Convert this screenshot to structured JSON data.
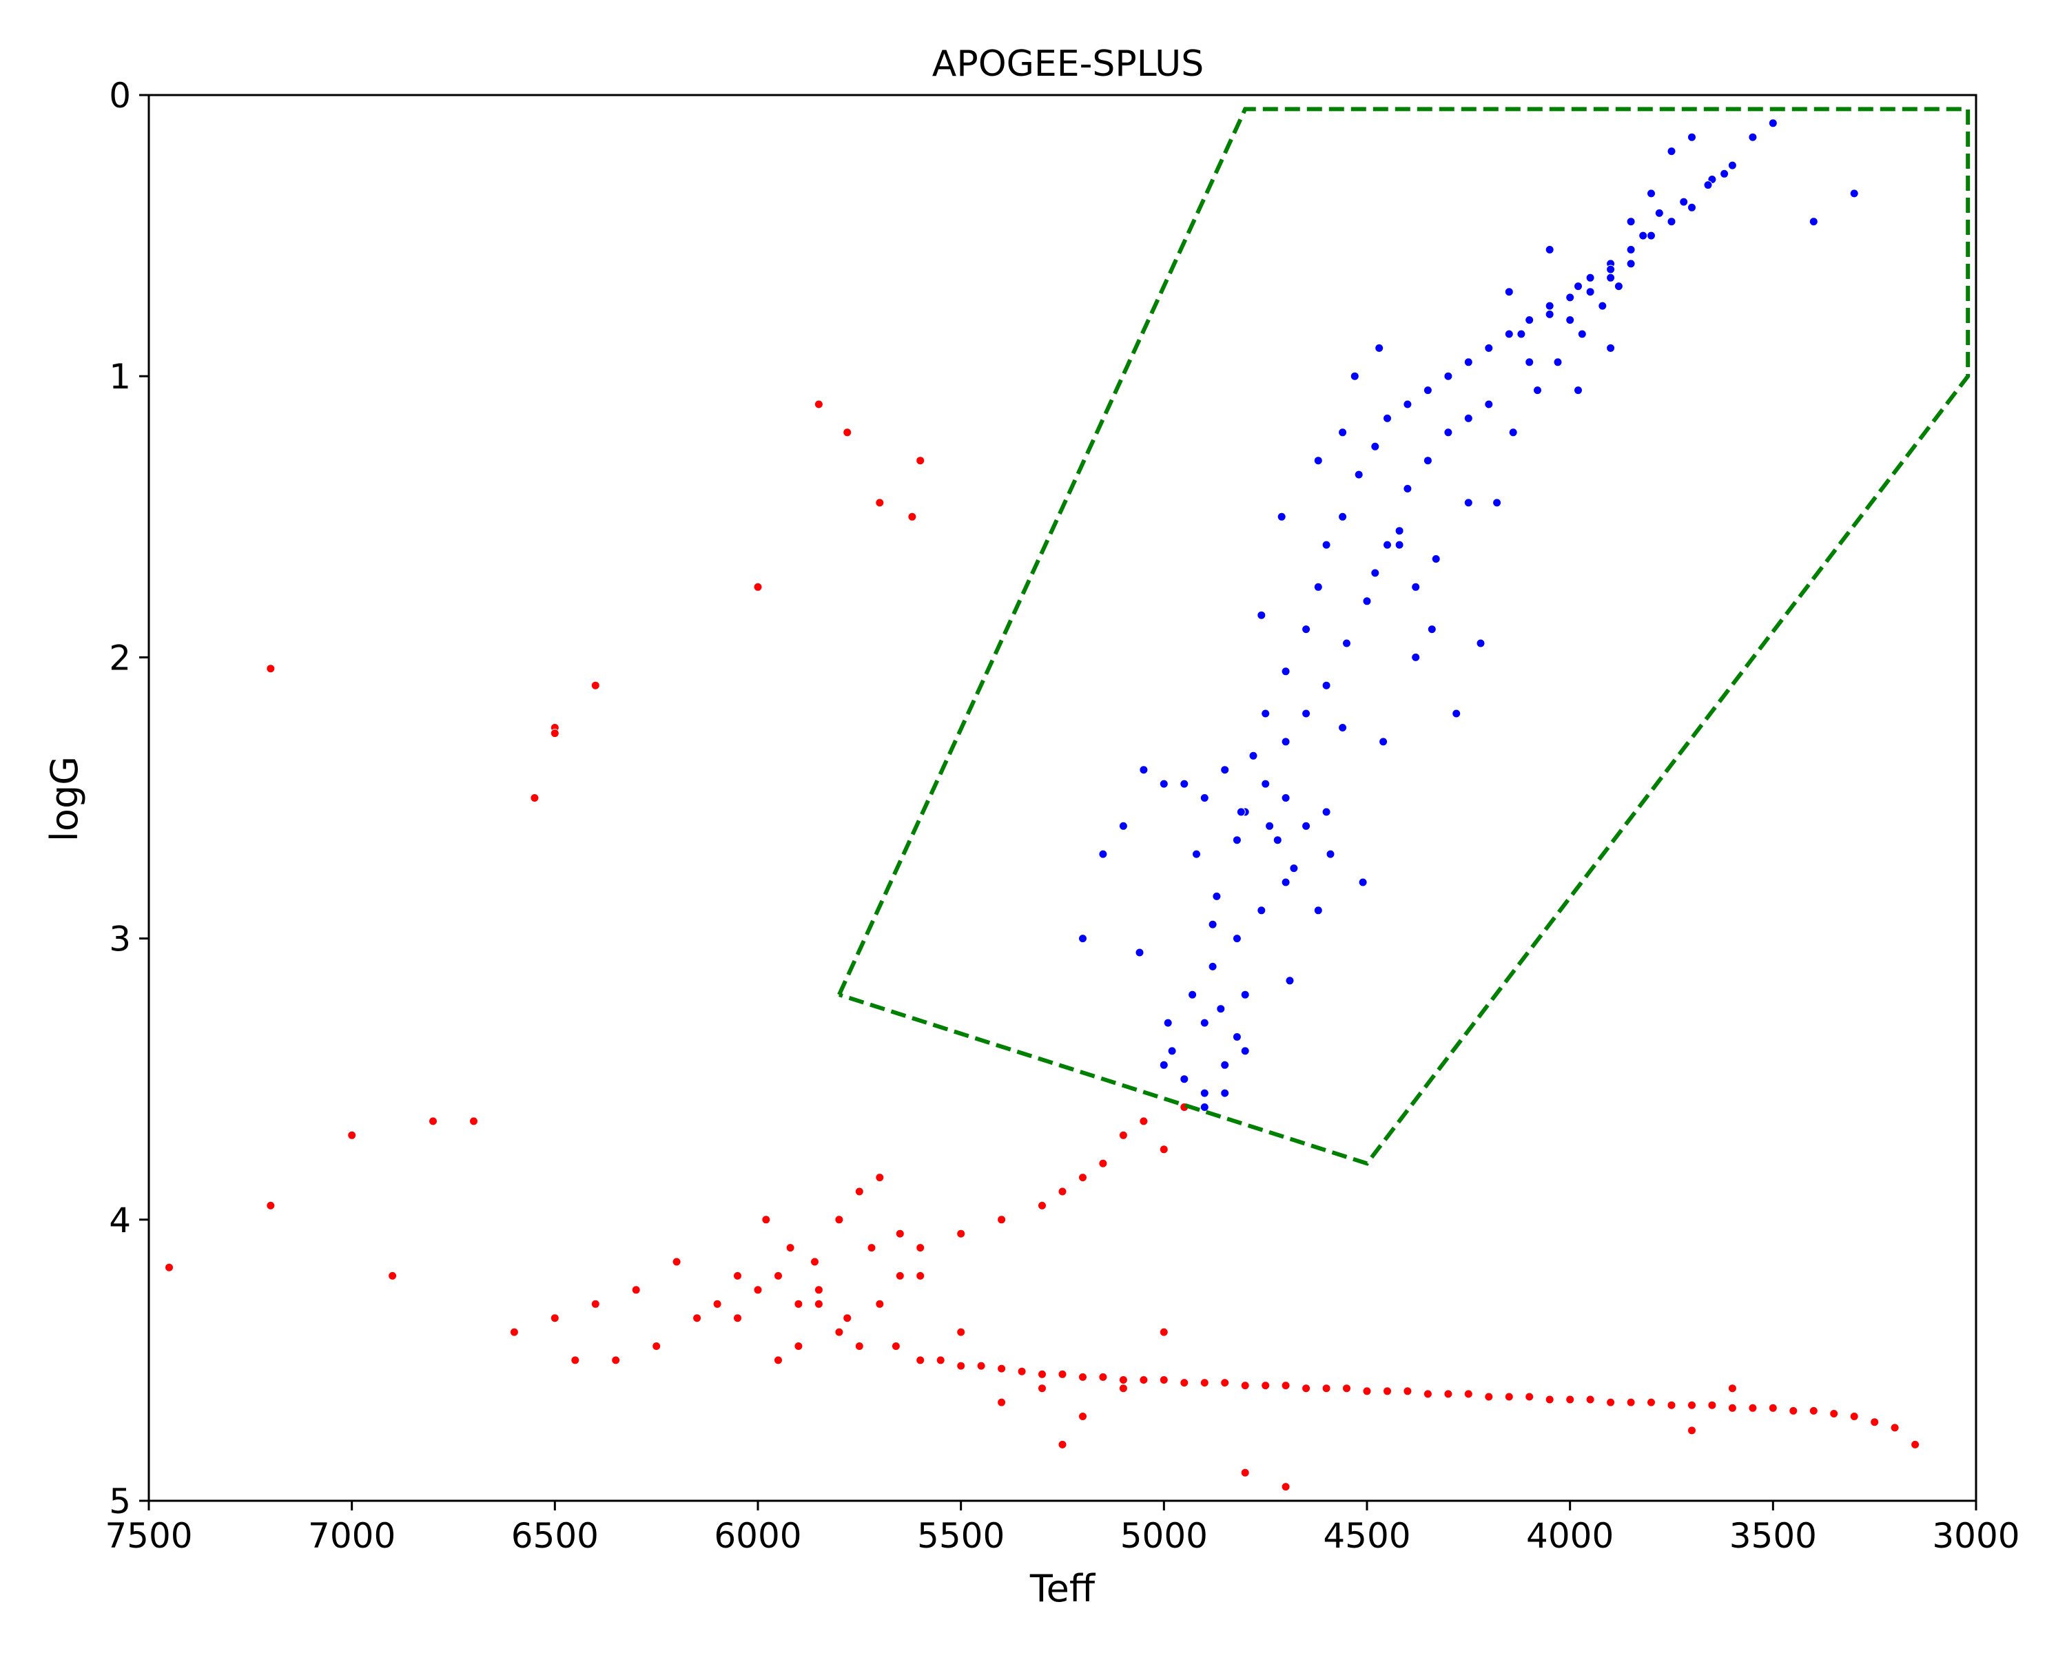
{
  "chart_data": {
    "type": "scatter",
    "title": "APOGEE-SPLUS",
    "xlabel": "Teff",
    "ylabel": "logG",
    "xlim": [
      7500,
      3000
    ],
    "ylim": [
      5,
      0
    ],
    "x_inverted": true,
    "y_inverted": true,
    "xticks": [
      7500,
      7000,
      6500,
      6000,
      5500,
      5000,
      4500,
      4000,
      3500,
      3000
    ],
    "yticks": [
      0,
      1,
      2,
      3,
      4,
      5
    ],
    "grid": false,
    "legend": "none",
    "colors": {
      "selected": "#0000ff",
      "other": "#ff0000",
      "boundary": "#008000"
    },
    "selection_polygon": {
      "style": "dashed",
      "teff": [
        5800,
        4800,
        3020,
        3020,
        4500,
        5800
      ],
      "logg": [
        3.2,
        0.05,
        0.05,
        1.0,
        3.8,
        3.2
      ]
    },
    "series": [
      {
        "group": "selected",
        "color": "#0000ff",
        "teff": [
          4950,
          4900,
          4850,
          4800,
          4750,
          4700,
          4650,
          4600,
          4900,
          4850,
          4800,
          4950,
          4880,
          4820,
          4760,
          4700,
          4900,
          4850,
          4800,
          4920,
          4880,
          4860,
          4820,
          4780,
          4750,
          4700,
          4650,
          4620,
          4600,
          4560,
          4520,
          4480,
          4450,
          4400,
          4350,
          4300,
          4250,
          4200,
          4150,
          4100,
          4050,
          4000,
          3950,
          3900,
          3850,
          3800,
          3750,
          3700,
          3650,
          3600,
          4400,
          4300,
          4200,
          4100,
          4000,
          3950,
          3900,
          3850,
          4150,
          4050,
          3980,
          3900,
          4500,
          4450,
          4350,
          4250,
          4600,
          4550,
          4700,
          4650,
          5000,
          5050,
          5100,
          5150,
          5200,
          4680,
          4720,
          4560,
          4480,
          4420,
          3850,
          3800,
          3750,
          3700,
          3900,
          3980,
          4050,
          4120,
          4250,
          4330,
          4380,
          4460,
          4620,
          4690,
          4820,
          4980,
          5060,
          4760,
          4710,
          4620,
          4560,
          4530,
          4470,
          4420,
          4380,
          4340,
          4280,
          4220,
          4180,
          4140,
          4080,
          4030,
          3970,
          3920,
          3880,
          3820,
          3780,
          3720,
          3660,
          3620,
          3550,
          3500,
          3400,
          3300,
          4900,
          4950,
          5000,
          4870,
          4930,
          4990,
          4810,
          4740,
          4590,
          4510
        ],
        "logg": [
          2.45,
          2.5,
          2.4,
          2.55,
          2.45,
          2.5,
          2.6,
          2.55,
          3.3,
          3.45,
          3.2,
          3.5,
          3.1,
          3.0,
          2.9,
          2.8,
          3.6,
          3.55,
          3.4,
          2.7,
          2.95,
          3.25,
          2.65,
          2.35,
          2.2,
          2.05,
          1.9,
          1.75,
          1.6,
          1.5,
          1.35,
          1.25,
          1.15,
          1.1,
          1.05,
          1.0,
          0.95,
          0.9,
          0.85,
          0.8,
          0.75,
          0.72,
          0.65,
          0.6,
          0.55,
          0.5,
          0.45,
          0.4,
          0.3,
          0.25,
          1.4,
          1.2,
          1.1,
          0.95,
          0.8,
          0.7,
          0.65,
          0.6,
          0.7,
          0.78,
          0.68,
          0.62,
          1.8,
          1.6,
          1.3,
          1.15,
          2.1,
          1.95,
          2.3,
          2.2,
          2.45,
          2.4,
          2.6,
          2.7,
          3.0,
          2.75,
          2.65,
          2.25,
          1.7,
          1.55,
          0.45,
          0.35,
          0.2,
          0.15,
          0.9,
          1.05,
          0.55,
          0.85,
          1.45,
          1.65,
          2.0,
          2.3,
          2.9,
          3.15,
          3.35,
          3.4,
          3.05,
          1.85,
          1.5,
          1.3,
          1.2,
          1.0,
          0.9,
          1.6,
          1.75,
          1.9,
          2.2,
          1.95,
          1.45,
          1.2,
          1.05,
          0.95,
          0.85,
          0.75,
          0.68,
          0.5,
          0.42,
          0.38,
          0.32,
          0.28,
          0.15,
          0.1,
          0.45,
          0.35,
          3.55,
          3.5,
          3.45,
          2.85,
          3.2,
          3.3,
          2.55,
          2.6,
          2.7,
          2.8
        ]
      },
      {
        "group": "other",
        "color": "#ff0000",
        "teff": [
          5950,
          5900,
          5850,
          5800,
          5750,
          5700,
          5650,
          6000,
          6050,
          6100,
          5980,
          5920,
          5860,
          5780,
          5720,
          5660,
          5600,
          5550,
          5500,
          5450,
          5400,
          5350,
          5300,
          5250,
          5200,
          5150,
          5100,
          5050,
          5000,
          4950,
          4900,
          4850,
          4800,
          4750,
          4700,
          4650,
          4600,
          4550,
          4500,
          4450,
          4400,
          4350,
          4300,
          4250,
          4200,
          4150,
          4100,
          4050,
          4000,
          3950,
          3900,
          3850,
          3800,
          3750,
          3700,
          3650,
          3600,
          3550,
          3500,
          3450,
          3400,
          3350,
          3300,
          5100,
          5050,
          5000,
          4950,
          5150,
          5200,
          5250,
          5300,
          5400,
          5500,
          5600,
          6200,
          6300,
          6400,
          6500,
          6600,
          7000,
          7200,
          7450,
          5800,
          5750,
          5700,
          5650,
          5600,
          5500,
          5300,
          5400,
          6150,
          6250,
          6350,
          6450,
          6700,
          6900,
          5850,
          5900,
          5950,
          6050,
          5000,
          5100,
          5200,
          5250,
          3250,
          3200,
          3150,
          3600,
          3700,
          4800,
          4700,
          5600,
          5620,
          5700,
          5780,
          5850,
          6500,
          6550,
          6400,
          6500,
          6800,
          6000,
          7200
        ],
        "logg": [
          4.2,
          4.3,
          4.25,
          4.4,
          4.45,
          4.3,
          4.2,
          4.25,
          4.2,
          4.3,
          4.0,
          4.1,
          4.15,
          4.35,
          4.1,
          4.45,
          4.5,
          4.5,
          4.52,
          4.52,
          4.53,
          4.54,
          4.55,
          4.55,
          4.56,
          4.56,
          4.57,
          4.57,
          4.57,
          4.58,
          4.58,
          4.58,
          4.59,
          4.59,
          4.59,
          4.6,
          4.6,
          4.6,
          4.61,
          4.61,
          4.61,
          4.62,
          4.62,
          4.62,
          4.63,
          4.63,
          4.63,
          4.64,
          4.64,
          4.64,
          4.65,
          4.65,
          4.65,
          4.66,
          4.66,
          4.66,
          4.67,
          4.67,
          4.67,
          4.68,
          4.68,
          4.69,
          4.7,
          3.7,
          3.65,
          3.75,
          3.6,
          3.8,
          3.85,
          3.9,
          3.95,
          4.0,
          4.05,
          4.1,
          4.15,
          4.25,
          4.3,
          4.35,
          4.4,
          3.7,
          3.95,
          4.17,
          4.0,
          3.9,
          3.85,
          4.05,
          4.2,
          4.4,
          4.6,
          4.65,
          4.35,
          4.45,
          4.5,
          4.5,
          3.65,
          4.2,
          4.3,
          4.45,
          4.5,
          4.35,
          4.4,
          4.6,
          4.7,
          4.8,
          4.72,
          4.74,
          4.8,
          4.6,
          4.75,
          4.9,
          4.95,
          1.3,
          1.5,
          1.45,
          1.2,
          1.1,
          2.25,
          2.5,
          2.1,
          2.27,
          3.65,
          1.75,
          2.04
        ]
      }
    ]
  }
}
